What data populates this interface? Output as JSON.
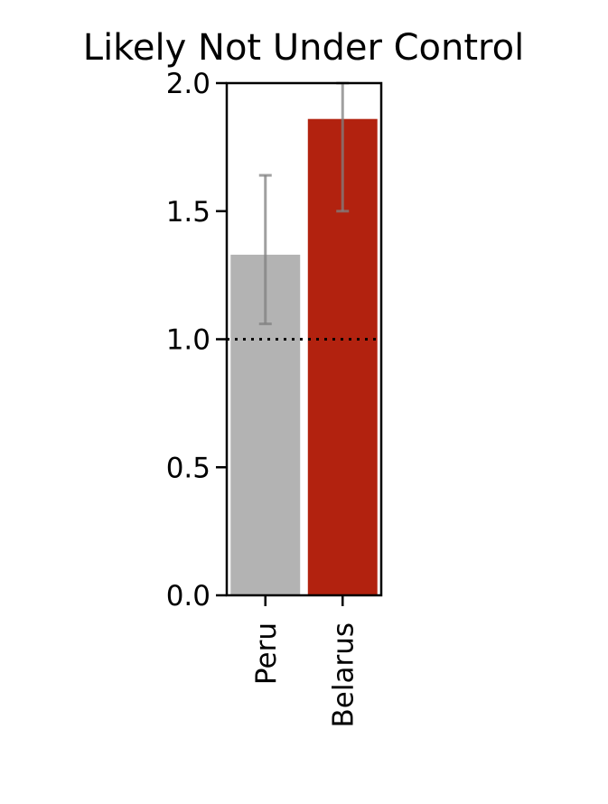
{
  "chart_data": {
    "type": "bar",
    "title": "Likely Not Under Control",
    "categories": [
      "Peru",
      "Belarus"
    ],
    "series": [
      {
        "values": [
          1.33,
          1.86
        ],
        "error_low": [
          1.06,
          1.5
        ],
        "error_high": [
          1.64,
          2.0
        ],
        "colors": [
          "#b3b3b3",
          "#b2220f"
        ]
      }
    ],
    "xlabel": "",
    "ylabel": "",
    "ylim": [
      0,
      2.0
    ],
    "yticks": [
      "0.0",
      "0.5",
      "1.0",
      "1.5",
      "2.0"
    ],
    "reference_line": {
      "y": 1.0,
      "style": "dotted",
      "color": "#000000"
    },
    "grid": false,
    "legend": "none",
    "error_bar_color": "#808080"
  }
}
